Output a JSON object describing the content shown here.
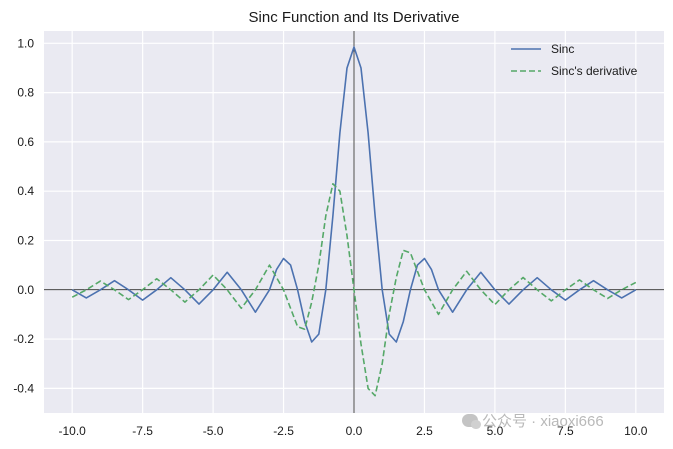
{
  "watermark": "公众号 · xiaoxi666",
  "chart_data": {
    "type": "line",
    "title": "Sinc Function and Its Derivative",
    "xlabel": "",
    "ylabel": "",
    "xlim": [
      -11,
      11
    ],
    "ylim": [
      -0.5,
      1.05
    ],
    "x_ticks": [
      -10.0,
      -7.5,
      -5.0,
      -2.5,
      0.0,
      2.5,
      5.0,
      7.5,
      10.0
    ],
    "x_tick_labels": [
      "-10.0",
      "-7.5",
      "-5.0",
      "-2.5",
      "0.0",
      "2.5",
      "5.0",
      "7.5",
      "10.0"
    ],
    "y_ticks": [
      -0.4,
      -0.2,
      0.0,
      0.2,
      0.4,
      0.6,
      0.8,
      1.0
    ],
    "y_tick_labels": [
      "-0.4",
      "-0.2",
      "0.0",
      "0.2",
      "0.4",
      "0.6",
      "0.8",
      "1.0"
    ],
    "grid": true,
    "background": "#eaeaf2",
    "legend_position": "top-right",
    "reference_lines": {
      "x": 0,
      "y": 0
    },
    "series": [
      {
        "name": "Sinc",
        "color": "#4c72b0",
        "style": "solid",
        "x": [
          -10,
          -9.5,
          -9,
          -8.5,
          -8,
          -7.5,
          -7,
          -6.5,
          -6,
          -5.5,
          -5,
          -4.5,
          -4,
          -3.5,
          -3,
          -2.75,
          -2.5,
          -2.25,
          -2,
          -1.75,
          -1.5,
          -1.25,
          -1,
          -0.75,
          -0.5,
          -0.25,
          0,
          0.25,
          0.5,
          0.75,
          1,
          1.25,
          1.5,
          1.75,
          2,
          2.25,
          2.5,
          2.75,
          3,
          3.5,
          4,
          4.5,
          5,
          5.5,
          6,
          6.5,
          7,
          7.5,
          8,
          8.5,
          9,
          9.5,
          10
        ],
        "y": [
          0.0,
          -0.033,
          0.0,
          0.037,
          0.0,
          -0.042,
          0.0,
          0.049,
          0.0,
          -0.058,
          0.0,
          0.071,
          0.0,
          -0.091,
          0.0,
          0.082,
          0.127,
          0.1,
          0.0,
          -0.129,
          -0.212,
          -0.18,
          0.0,
          0.3,
          0.637,
          0.9,
          0.985,
          0.9,
          0.637,
          0.3,
          0.0,
          -0.18,
          -0.212,
          -0.129,
          0.0,
          0.1,
          0.127,
          0.082,
          0.0,
          -0.091,
          0.0,
          0.071,
          0.0,
          -0.058,
          0.0,
          0.049,
          0.0,
          -0.042,
          0.0,
          0.037,
          0.0,
          -0.033,
          0.0
        ]
      },
      {
        "name": "Sinc's derivative",
        "color": "#55a868",
        "style": "dashed",
        "x": [
          -10,
          -9.5,
          -9,
          -8.5,
          -8,
          -7.5,
          -7,
          -6.5,
          -6,
          -5.5,
          -5,
          -4.5,
          -4,
          -3.5,
          -3,
          -2.5,
          -2,
          -1.75,
          -1.5,
          -1.25,
          -1,
          -0.75,
          -0.5,
          -0.25,
          0,
          0.25,
          0.5,
          0.75,
          1,
          1.25,
          1.5,
          1.75,
          2,
          2.5,
          3,
          3.5,
          4,
          4.5,
          5,
          5.5,
          6,
          6.5,
          7,
          7.5,
          8,
          8.5,
          9,
          9.5,
          10
        ],
        "y": [
          -0.03,
          0.0,
          0.035,
          0.0,
          -0.04,
          0.0,
          0.045,
          0.0,
          -0.05,
          0.0,
          0.06,
          0.0,
          -0.075,
          0.0,
          0.1,
          0.0,
          -0.15,
          -0.16,
          -0.05,
          0.1,
          0.3,
          0.43,
          0.4,
          0.22,
          0.0,
          -0.22,
          -0.4,
          -0.43,
          -0.3,
          -0.1,
          0.05,
          0.16,
          0.15,
          0.0,
          -0.1,
          0.0,
          0.075,
          0.0,
          -0.06,
          0.0,
          0.05,
          0.0,
          -0.045,
          0.0,
          0.04,
          0.0,
          -0.035,
          0.0,
          0.03
        ]
      }
    ]
  }
}
